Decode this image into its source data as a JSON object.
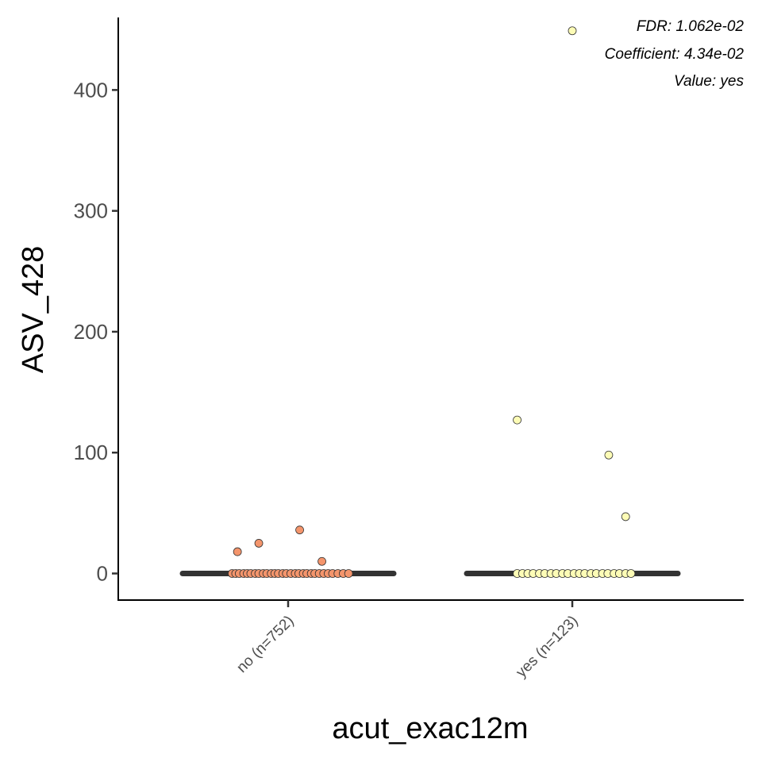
{
  "chart_data": {
    "type": "box",
    "xlabel": "acut_exac12m",
    "ylabel": "ASV_428",
    "ylim": [
      -22,
      460
    ],
    "yticks": [
      0,
      100,
      200,
      300,
      400
    ],
    "grid": false,
    "legend": "none",
    "annotations": [
      "FDR: 1.062e-02",
      "Coefficient: 4.34e-02",
      "Value: yes"
    ],
    "categories": [
      "no (n=752)",
      "yes (n=123)"
    ],
    "groups": [
      {
        "category": "no (n=752)",
        "fill": "#f4956c",
        "median": 0,
        "q1": 0,
        "q3": 0,
        "outliers": [
          18,
          25,
          36,
          10
        ],
        "outlier_jitter": [
          -0.57,
          -0.33,
          0.13,
          0.38
        ],
        "zero_jitter": [
          -0.63,
          -0.59,
          -0.55,
          -0.5,
          -0.46,
          -0.42,
          -0.37,
          -0.33,
          -0.28,
          -0.24,
          -0.19,
          -0.15,
          -0.11,
          -0.06,
          -0.02,
          0.03,
          0.08,
          0.12,
          0.17,
          0.21,
          0.26,
          0.3,
          0.35,
          0.4,
          0.45,
          0.5,
          0.56,
          0.62,
          0.68
        ]
      },
      {
        "category": "yes (n=123)",
        "fill": "#fdfcb6",
        "median": 0,
        "q1": 0,
        "q3": 0,
        "outliers": [
          449,
          127,
          98,
          47
        ],
        "outlier_jitter": [
          0.0,
          -0.62,
          0.41,
          0.6
        ],
        "zero_jitter": [
          -0.62,
          -0.56,
          -0.5,
          -0.44,
          -0.37,
          -0.31,
          -0.24,
          -0.18,
          -0.11,
          -0.05,
          0.02,
          0.08,
          0.14,
          0.21,
          0.27,
          0.34,
          0.4,
          0.47,
          0.53,
          0.6,
          0.66
        ]
      }
    ]
  }
}
